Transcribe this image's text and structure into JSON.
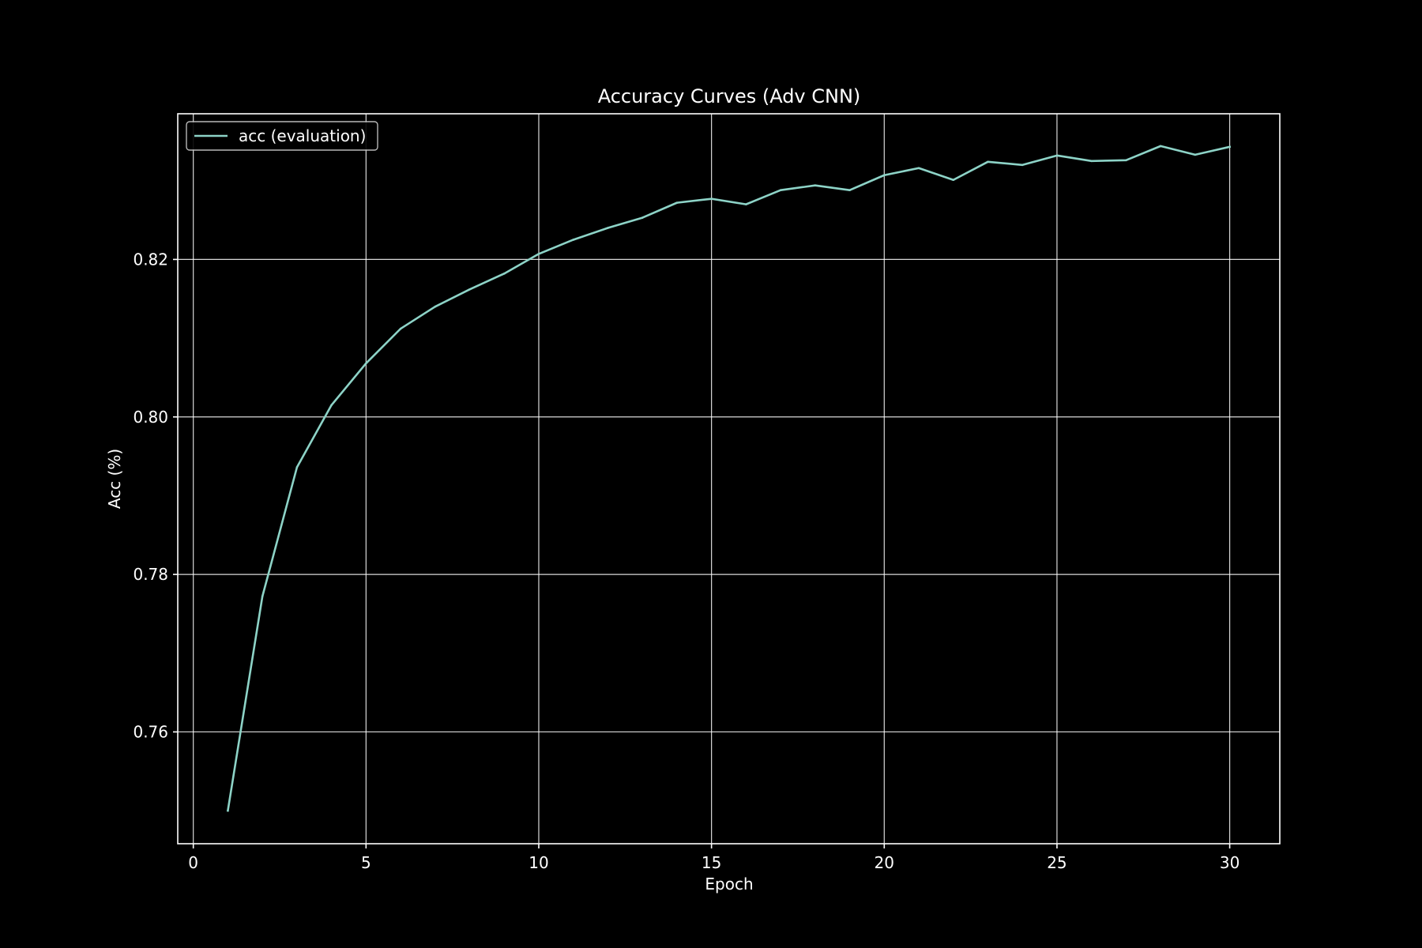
{
  "chart_data": {
    "type": "line",
    "title": "Accuracy Curves (Adv CNN)",
    "xlabel": "Epoch",
    "ylabel": "Acc (%)",
    "xlim": [
      -0.45,
      31.45
    ],
    "ylim": [
      0.7458,
      0.8385
    ],
    "xticks": [
      0,
      5,
      10,
      15,
      20,
      25,
      30
    ],
    "yticks": [
      0.76,
      0.78,
      0.8,
      0.82
    ],
    "ytick_labels": [
      "0.76",
      "0.78",
      "0.80",
      "0.82"
    ],
    "grid": true,
    "legend_position": "top-left",
    "series": [
      {
        "name": "acc (evaluation)",
        "color": "#8dd3c7",
        "x": [
          1,
          2,
          3,
          4,
          5,
          6,
          7,
          8,
          9,
          10,
          11,
          12,
          13,
          14,
          15,
          16,
          17,
          18,
          19,
          20,
          21,
          22,
          23,
          24,
          25,
          26,
          27,
          28,
          29,
          30
        ],
        "y": [
          0.75,
          0.7772,
          0.7936,
          0.8015,
          0.8068,
          0.8112,
          0.814,
          0.8162,
          0.8182,
          0.8207,
          0.8225,
          0.824,
          0.8253,
          0.8272,
          0.8277,
          0.827,
          0.8288,
          0.8294,
          0.8288,
          0.8307,
          0.8316,
          0.8301,
          0.8324,
          0.832,
          0.8332,
          0.8325,
          0.8326,
          0.8344,
          0.8333,
          0.8343
        ]
      }
    ]
  }
}
